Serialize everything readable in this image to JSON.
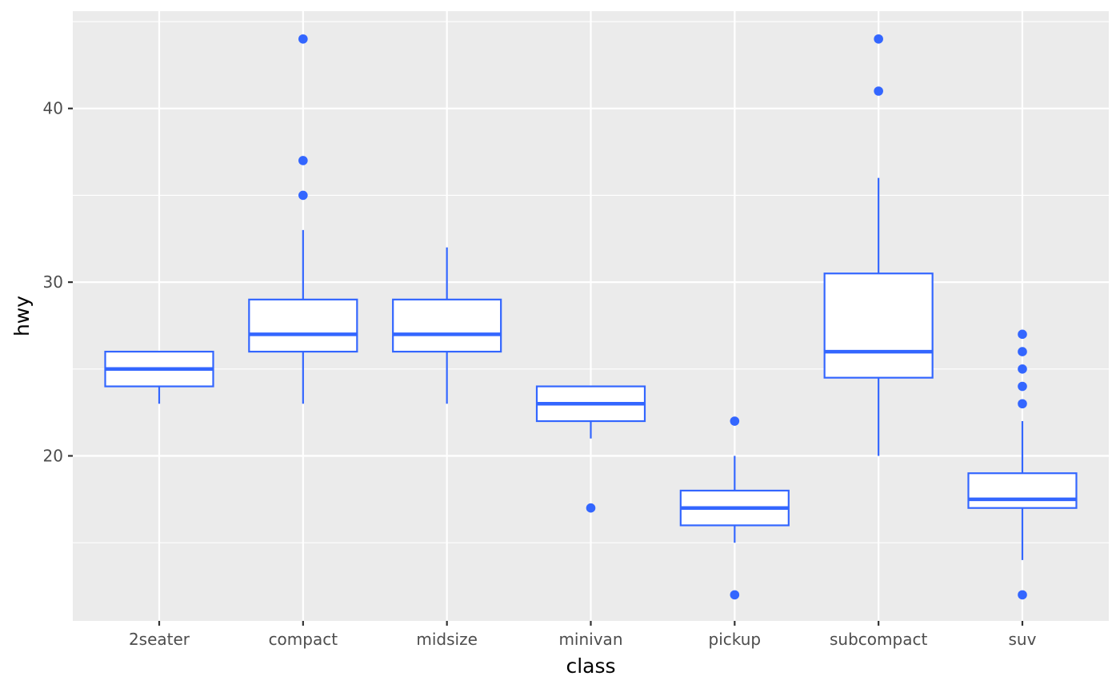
{
  "chart_data": {
    "type": "box",
    "xlabel": "class",
    "ylabel": "hwy",
    "ylim": [
      10.5,
      45.6
    ],
    "y_ticks": [
      20,
      30,
      40
    ],
    "grid": true,
    "colors": {
      "panel": "#ebebeb",
      "grid": "#ffffff",
      "box": "#3366ff",
      "box_fill": "#ffffff",
      "tick": "#333333",
      "tick_label": "#4d4d4d"
    },
    "categories": [
      "2seater",
      "compact",
      "midsize",
      "minivan",
      "pickup",
      "subcompact",
      "suv"
    ],
    "boxes": [
      {
        "category": "2seater",
        "lower_whisker": 23,
        "q1": 24,
        "median": 25,
        "q3": 26,
        "upper_whisker": 26,
        "outliers": []
      },
      {
        "category": "compact",
        "lower_whisker": 23,
        "q1": 26,
        "median": 27,
        "q3": 29,
        "upper_whisker": 33,
        "outliers": [
          35,
          37,
          44
        ]
      },
      {
        "category": "midsize",
        "lower_whisker": 23,
        "q1": 26,
        "median": 27,
        "q3": 29,
        "upper_whisker": 32,
        "outliers": []
      },
      {
        "category": "minivan",
        "lower_whisker": 21,
        "q1": 22,
        "median": 23,
        "q3": 24,
        "upper_whisker": 24,
        "outliers": [
          17
        ]
      },
      {
        "category": "pickup",
        "lower_whisker": 15,
        "q1": 16,
        "median": 17,
        "q3": 18,
        "upper_whisker": 20,
        "outliers": [
          12,
          22
        ]
      },
      {
        "category": "subcompact",
        "lower_whisker": 20,
        "q1": 24.5,
        "median": 26,
        "q3": 30.5,
        "upper_whisker": 36,
        "outliers": [
          41,
          44
        ]
      },
      {
        "category": "suv",
        "lower_whisker": 14,
        "q1": 17,
        "median": 17.5,
        "q3": 19,
        "upper_whisker": 22,
        "outliers": [
          12,
          23,
          24,
          25,
          26,
          27
        ]
      }
    ]
  }
}
